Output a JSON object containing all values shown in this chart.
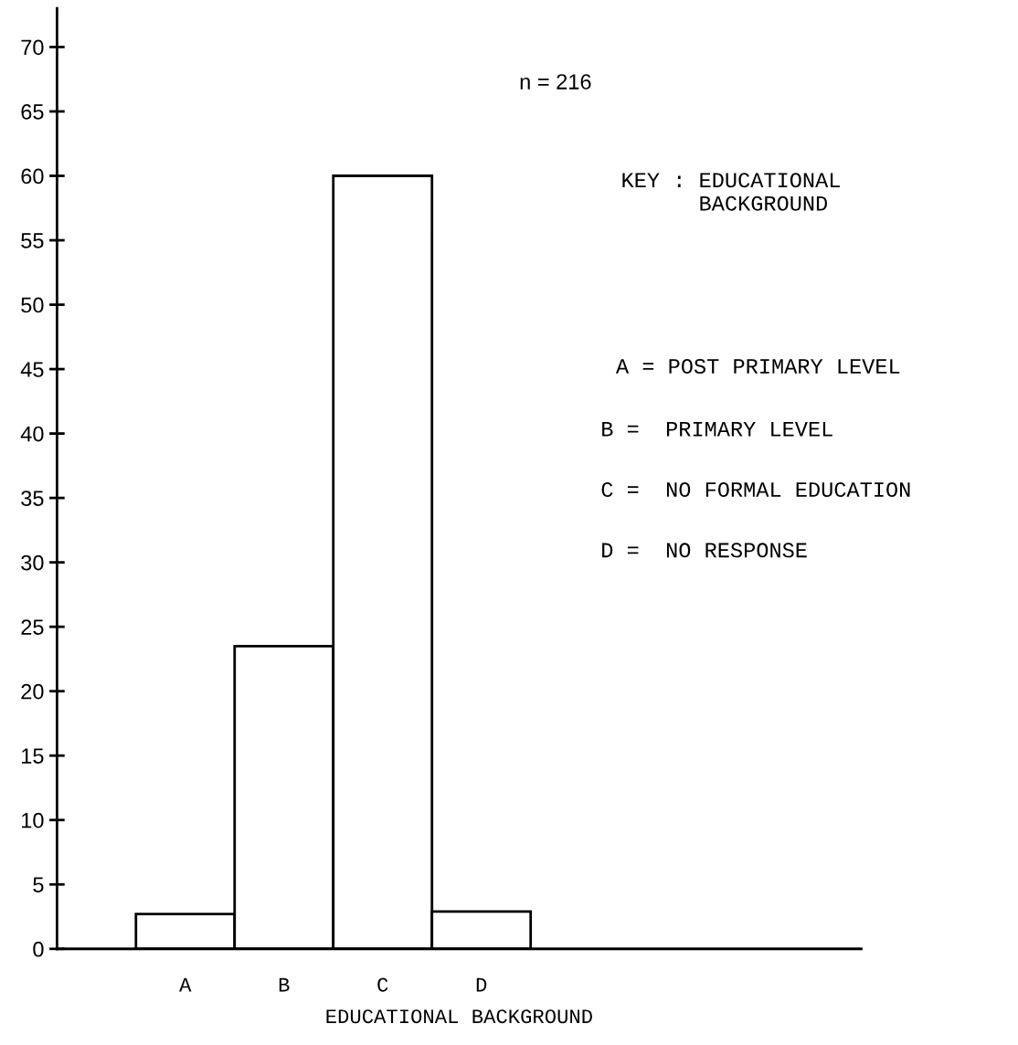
{
  "chart_data": {
    "type": "bar",
    "categories": [
      "A",
      "B",
      "C",
      "D"
    ],
    "values": [
      2.7,
      23.5,
      60,
      2.9
    ],
    "color": "#ffffff",
    "xlabel": "EDUCATIONAL BACKGROUND",
    "ylim": [
      0,
      73
    ],
    "yticks": [
      0,
      5,
      10,
      15,
      20,
      25,
      30,
      35,
      40,
      45,
      50,
      55,
      60,
      65,
      70
    ],
    "grid": false,
    "annotations": [
      "n = 216",
      "KEY : EDUCATIONAL\n      BACKGROUND",
      "A = POST PRIMARY LEVEL",
      "B =  PRIMARY LEVEL",
      "C =  NO FORMAL EDUCATION",
      "D =  NO RESPONSE"
    ]
  }
}
